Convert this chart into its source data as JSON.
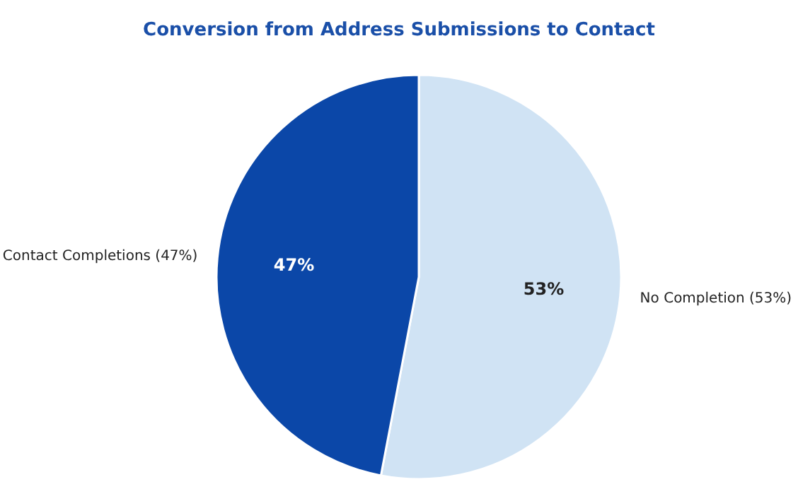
{
  "chart_data": {
    "type": "pie",
    "title": "Conversion from Address Submissions to Contact",
    "categories": [
      "No Completion (53%)",
      "Contact Completions (47%)"
    ],
    "values": [
      53,
      47
    ],
    "colors": [
      "#d0e3f4",
      "#0b47a8"
    ],
    "value_labels": [
      "53%",
      "47%"
    ]
  }
}
